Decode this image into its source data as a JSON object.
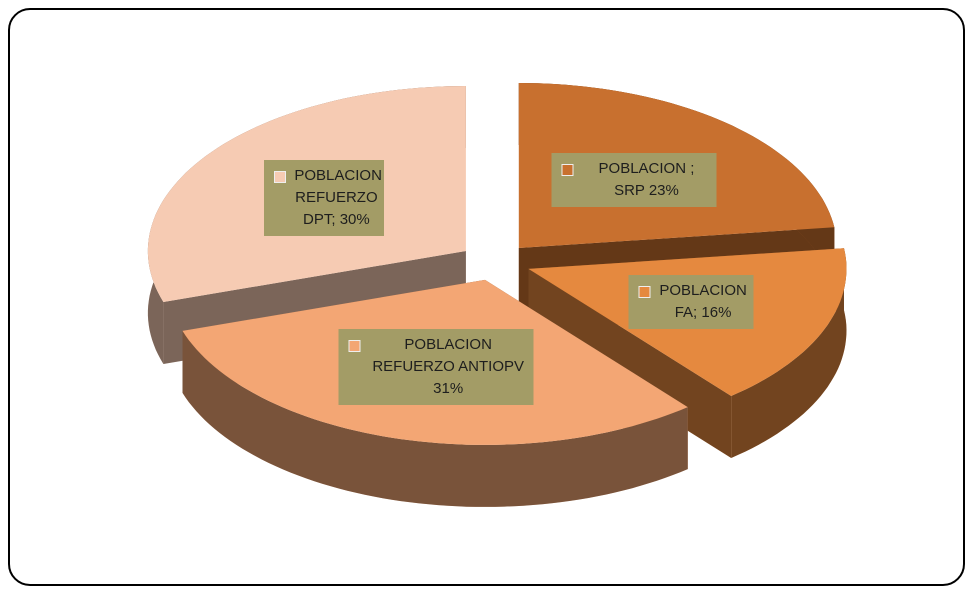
{
  "chart_data": {
    "type": "pie",
    "categories": [
      "POBLACION ; SRP",
      "POBLACION FA;",
      "POBLACION REFUERZO ANTIOPV",
      "POBLACION REFUERZO DPT;"
    ],
    "values": [
      23,
      16,
      31,
      30
    ],
    "value_labels": [
      "23%",
      "16%",
      "31%",
      "30%"
    ],
    "colors": [
      "#c8702f",
      "#e5893f",
      "#f3a674",
      "#f6cbb3"
    ]
  }
}
